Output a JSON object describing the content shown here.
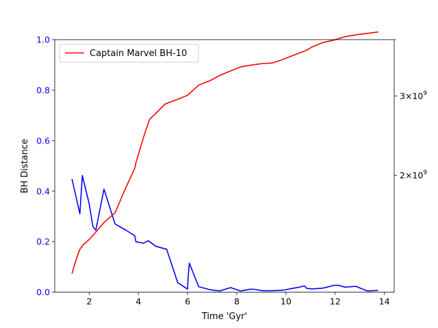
{
  "chart_data": {
    "type": "line",
    "xlabel": "Time 'Gyr'",
    "ylabel": "BH Distance",
    "xlim": [
      0.6,
      14.4
    ],
    "ylim": [
      0.0,
      1.0
    ],
    "x_ticks": [
      2,
      4,
      6,
      8,
      10,
      12,
      14
    ],
    "x_tick_labels": [
      "2",
      "4",
      "6",
      "8",
      "10",
      "12",
      "14"
    ],
    "y_ticks": [
      0.0,
      0.2,
      0.4,
      0.6,
      0.8,
      1.0
    ],
    "y_tick_labels": [
      "0.0",
      "0.2",
      "0.4",
      "0.6",
      "0.8",
      "1.0"
    ],
    "y_tick_color": "#0000ff",
    "y2_scale": "log",
    "y2lim": [
      1100000000,
      4000000000
    ],
    "y2_ticks": [
      2000000000,
      3000000000
    ],
    "y2_tick_labels": [
      {
        "base": "2×10",
        "exp": "9"
      },
      {
        "base": "3×10",
        "exp": "9"
      }
    ],
    "legend_position": "top-left",
    "series": [
      {
        "name": "",
        "axis": "left",
        "color": "#0000ff",
        "x": [
          1.3,
          1.62,
          1.72,
          2.0,
          2.15,
          2.27,
          2.6,
          3.05,
          3.5,
          3.85,
          3.9,
          4.2,
          4.4,
          4.7,
          5.15,
          5.6,
          6.0,
          6.02,
          6.07,
          6.45,
          6.9,
          7.3,
          7.75,
          8.15,
          8.55,
          8.75,
          9.05,
          9.45,
          9.9,
          10.15,
          10.55,
          10.75,
          10.85,
          11.05,
          11.5,
          11.95,
          12.15,
          12.4,
          12.85,
          13.3,
          13.75
        ],
        "y": [
          0.448,
          0.31,
          0.462,
          0.35,
          0.26,
          0.245,
          0.408,
          0.27,
          0.245,
          0.224,
          0.2,
          0.194,
          0.204,
          0.182,
          0.17,
          0.038,
          0.012,
          0.055,
          0.115,
          0.022,
          0.01,
          0.005,
          0.018,
          0.005,
          0.012,
          0.011,
          0.006,
          0.006,
          0.008,
          0.013,
          0.02,
          0.025,
          0.015,
          0.013,
          0.016,
          0.027,
          0.027,
          0.02,
          0.023,
          0.005,
          0.007
        ]
      },
      {
        "name": "Captain Marvel BH-10",
        "axis": "right",
        "color": "#ff0000",
        "x": [
          1.3,
          1.45,
          1.62,
          1.75,
          2.0,
          2.2,
          2.6,
          3.05,
          3.4,
          3.85,
          3.9,
          4.2,
          4.45,
          5.1,
          5.6,
          6.0,
          6.45,
          6.9,
          7.3,
          7.75,
          8.15,
          8.55,
          9.05,
          9.45,
          9.9,
          10.35,
          10.85,
          11.05,
          11.5,
          11.95,
          12.4,
          12.85,
          13.3,
          13.75
        ],
        "y": [
          1210000000,
          1290000000,
          1370000000,
          1400000000,
          1440000000,
          1480000000,
          1570000000,
          1650000000,
          1830000000,
          2070000000,
          2130000000,
          2420000000,
          2660000000,
          2880000000,
          2950000000,
          3010000000,
          3170000000,
          3240000000,
          3330000000,
          3410000000,
          3480000000,
          3510000000,
          3540000000,
          3550000000,
          3620000000,
          3700000000,
          3790000000,
          3850000000,
          3940000000,
          3990000000,
          4060000000,
          4100000000,
          4130000000,
          4160000000
        ]
      }
    ]
  }
}
